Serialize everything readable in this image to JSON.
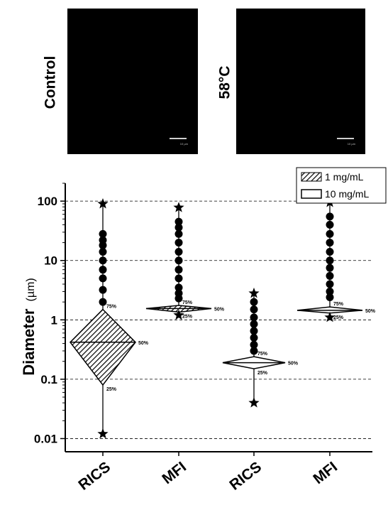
{
  "panels": [
    {
      "label": "Control",
      "scale_label": "10 µm"
    },
    {
      "label": "58°C",
      "scale_label": "10 µm"
    }
  ],
  "colors": {
    "background": "#ffffff",
    "ink": "#000000",
    "panel": "#000000"
  },
  "chart_data": {
    "type": "box",
    "ylabel": "Diameter",
    "ylabel_unit": "(µm)",
    "yscale": "log",
    "ylim": [
      0.006,
      200
    ],
    "yticks": [
      0.01,
      0.1,
      1,
      10,
      100
    ],
    "ytick_labels": [
      "0.01",
      "0.1",
      "1",
      "10",
      "100"
    ],
    "grid": "horizontal dashed at major ticks",
    "legend_position": "top-right",
    "legend": [
      {
        "label": "1 mg/mL",
        "pattern": "hatched"
      },
      {
        "label": "10 mg/mL",
        "pattern": "open"
      }
    ],
    "categories": [
      "RICS",
      "MFI",
      "RICS",
      "MFI"
    ],
    "groups": [
      {
        "series": "1 mg/mL",
        "category": "RICS",
        "min": 0.012,
        "p25": 0.08,
        "median": 0.42,
        "p75": 1.5,
        "max": 90,
        "outliers": [
          2.0,
          3.2,
          5,
          7,
          10,
          14,
          18,
          22,
          28
        ],
        "labels": {
          "p75": "75%",
          "median": "50%",
          "p25": "25%"
        }
      },
      {
        "series": "1 mg/mL",
        "category": "MFI",
        "min": 1.2,
        "p25": 1.35,
        "median": 1.55,
        "p75": 1.75,
        "max": 78,
        "outliers": [
          2.3,
          2.8,
          3.5,
          5,
          7,
          10,
          14,
          20,
          28,
          36,
          45
        ],
        "labels": {
          "p75": "75%",
          "median": "50%",
          "p25": "25%"
        }
      },
      {
        "series": "10 mg/mL",
        "category": "RICS",
        "min": 0.04,
        "p25": 0.15,
        "median": 0.19,
        "p75": 0.24,
        "max": 2.8,
        "outliers": [
          0.3,
          0.38,
          0.5,
          0.65,
          0.85,
          1.1,
          1.5,
          2.0
        ],
        "labels": {
          "p75": "75%",
          "median": "50%",
          "p25": "25%"
        }
      },
      {
        "series": "10 mg/mL",
        "category": "MFI",
        "min": 1.1,
        "p25": 1.3,
        "median": 1.45,
        "p75": 1.65,
        "max": 95,
        "outliers": [
          2.4,
          3.0,
          4,
          5.5,
          7.5,
          10,
          14,
          20,
          28,
          40,
          55
        ],
        "labels": {
          "p75": "75%",
          "median": "50%",
          "p25": "25%"
        }
      }
    ]
  }
}
